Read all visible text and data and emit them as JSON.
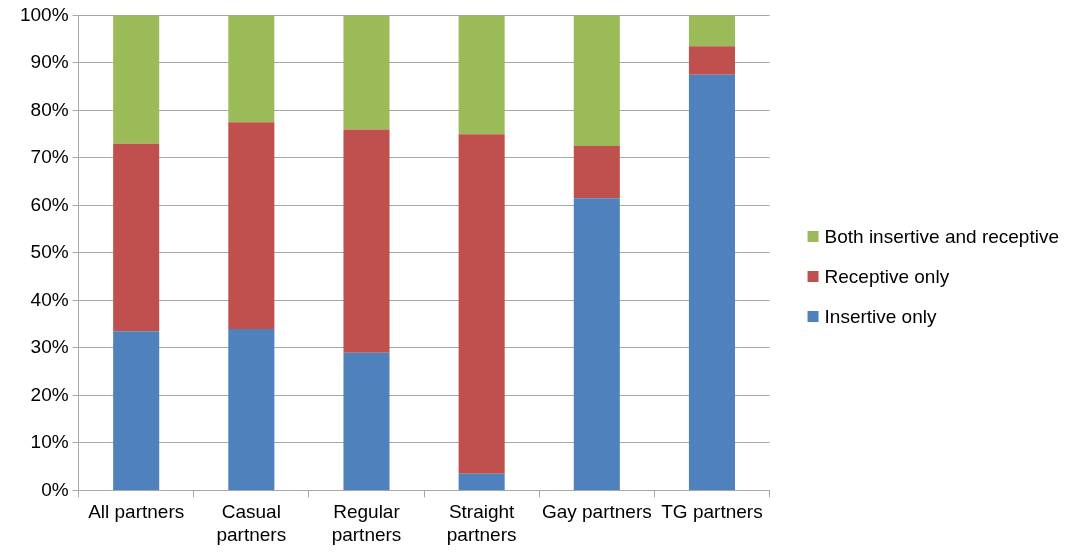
{
  "chart_data": {
    "type": "bar",
    "stacked": true,
    "categories": [
      "All partners",
      "Casual partners",
      "Regular partners",
      "Straight partners",
      "Gay partners",
      "TG partners"
    ],
    "series": [
      {
        "name": "Insertive only",
        "color": "#4f81bd",
        "values": [
          33.5,
          34,
          29,
          3.5,
          61.5,
          87.5
        ]
      },
      {
        "name": "Receptive only",
        "color": "#c0504d",
        "values": [
          39.5,
          43.5,
          47,
          71.5,
          11,
          6
        ]
      },
      {
        "name": "Both insertive and receptive",
        "color": "#9bbb59",
        "values": [
          27,
          22.5,
          24,
          25,
          27.5,
          6.5
        ]
      }
    ],
    "ylim": [
      0,
      100
    ],
    "yticks": [
      {
        "value": 0,
        "label": "0%"
      },
      {
        "value": 10,
        "label": "10%"
      },
      {
        "value": 20,
        "label": "20%"
      },
      {
        "value": 30,
        "label": "30%"
      },
      {
        "value": 40,
        "label": "40%"
      },
      {
        "value": 50,
        "label": "50%"
      },
      {
        "value": 60,
        "label": "60%"
      },
      {
        "value": 70,
        "label": "70%"
      },
      {
        "value": 80,
        "label": "80%"
      },
      {
        "value": 90,
        "label": "90%"
      },
      {
        "value": 100,
        "label": "100%"
      }
    ],
    "grid": "y",
    "legend": "right"
  }
}
